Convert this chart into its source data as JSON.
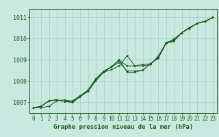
{
  "title": "Graphe pression niveau de la mer (hPa)",
  "background_color": "#c8e8e0",
  "grid_color": "#a8ccc8",
  "line_color": "#1a5c1a",
  "xlim": [
    -0.5,
    23.5
  ],
  "ylim": [
    1006.5,
    1011.4
  ],
  "xticks": [
    0,
    1,
    2,
    3,
    4,
    5,
    6,
    7,
    8,
    9,
    10,
    11,
    12,
    13,
    14,
    15,
    16,
    17,
    18,
    19,
    20,
    21,
    22,
    23
  ],
  "yticks": [
    1007,
    1008,
    1009,
    1010,
    1011
  ],
  "series": [
    [
      1006.75,
      1006.75,
      1006.82,
      1007.08,
      1007.12,
      1007.05,
      1007.28,
      1007.52,
      1008.08,
      1008.42,
      1008.55,
      1008.72,
      1009.2,
      1008.72,
      1008.72,
      1008.78,
      1009.18,
      1009.78,
      1009.88,
      1010.28,
      1010.48,
      1010.72,
      1010.82,
      1011.0
    ],
    [
      1006.75,
      1006.82,
      1007.08,
      1007.12,
      1007.05,
      1007.0,
      1007.28,
      1007.58,
      1008.08,
      1008.42,
      1008.68,
      1008.98,
      1008.72,
      1008.72,
      1008.78,
      1008.82,
      1009.08,
      1009.78,
      1009.98,
      1010.28,
      1010.52,
      1010.72,
      1010.82,
      1011.0
    ],
    [
      1006.75,
      1006.82,
      1007.08,
      1007.12,
      1007.05,
      1007.0,
      1007.28,
      1007.52,
      1008.02,
      1008.42,
      1008.68,
      1009.02,
      1008.42,
      1008.42,
      1008.52,
      1008.82,
      1009.12,
      1009.82,
      1009.92,
      1010.28,
      1010.52,
      1010.72,
      1010.82,
      1011.0
    ],
    [
      1006.75,
      1006.82,
      1007.08,
      1007.12,
      1007.05,
      1007.08,
      1007.32,
      1007.58,
      1008.12,
      1008.48,
      1008.68,
      1008.88,
      1008.48,
      1008.48,
      1008.52,
      1008.82,
      1009.12,
      1009.82,
      1009.92,
      1010.28,
      1010.52,
      1010.72,
      1010.82,
      1011.0
    ]
  ],
  "title_fontsize": 6.5,
  "tick_fontsize": 5.5,
  "ytick_fontsize": 6.0
}
